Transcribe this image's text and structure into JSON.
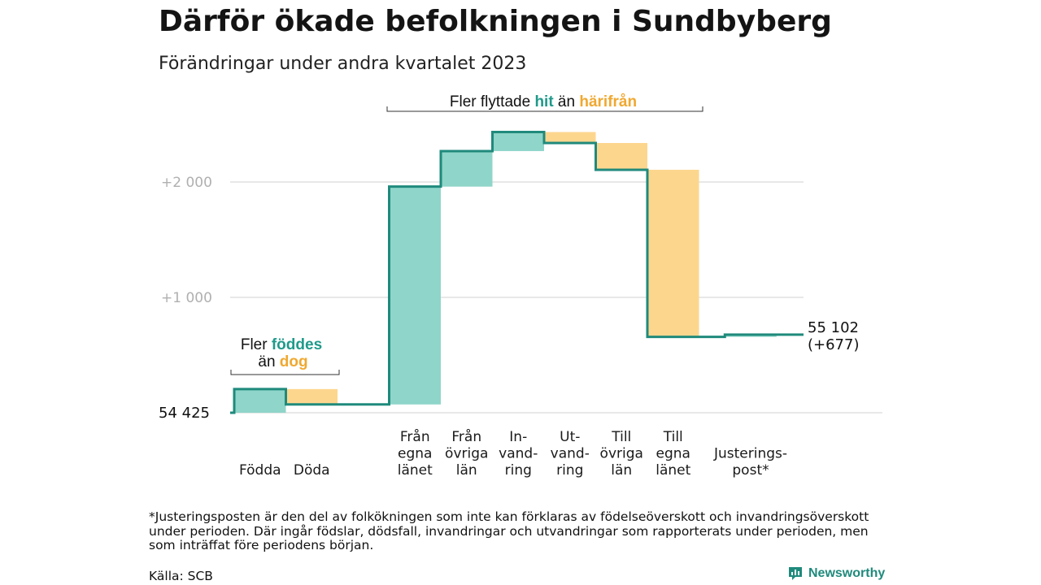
{
  "title": "Därför ökade befolkningen i Sundbyberg",
  "subtitle": "Förändringar under andra kvartalet 2023",
  "footnote": "*Justeringsposten är den del av folkökningen som inte kan förklaras av födelseöverskott och invandringsöverskott under perioden. Där ingår födslar, dödsfall, invandringar och utvandringar som rapporterats under perioden, men som inträffat före periodens början.",
  "source": "Källa: SCB",
  "brand": "Newsworthy",
  "annotations": {
    "births": {
      "line1_pre": "Fler ",
      "line1_hi": "föddes",
      "line2_pre": "än ",
      "line2_hi": "dog"
    },
    "migration": {
      "pre": "Fler flyttade ",
      "hi1": "hit",
      "mid": " än ",
      "hi2": "härifrån"
    }
  },
  "colors": {
    "line": "#1f8a7c",
    "increase": "#8fd5c9",
    "decrease": "#fdd68e",
    "hi_teal": "#1f9a8a",
    "hi_orange": "#f0a830",
    "grid": "#e0e0e0"
  },
  "chart_data": {
    "type": "waterfall",
    "start_label": "54  425",
    "start_value": 54425,
    "end_label": "55 102",
    "end_change_label": "(+677)",
    "end_value": 55102,
    "yticks": [
      {
        "value": 55425,
        "label": "+1   000"
      },
      {
        "value": 56425,
        "label": "+2   000"
      }
    ],
    "steps": [
      {
        "lines": [
          "Födda"
        ],
        "change": 205
      },
      {
        "lines": [
          "Döda"
        ],
        "change": -133
      },
      {
        "lines": [
          "Från",
          "egna",
          "länet"
        ],
        "change": 1888
      },
      {
        "lines": [
          "Från",
          "övriga",
          "län"
        ],
        "change": 308
      },
      {
        "lines": [
          "In-",
          "vand-",
          "ring"
        ],
        "change": 165
      },
      {
        "lines": [
          "Ut-",
          "vand-",
          "ring"
        ],
        "change": -95
      },
      {
        "lines": [
          "Till",
          "övriga",
          "län"
        ],
        "change": -232
      },
      {
        "lines": [
          "Till",
          "egna",
          "länet"
        ],
        "change": -1448
      },
      {
        "lines": [
          "Justerings-",
          "post*"
        ],
        "change": 19
      }
    ]
  }
}
